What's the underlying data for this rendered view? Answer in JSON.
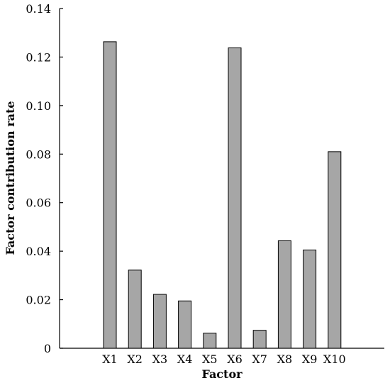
{
  "chart_data": {
    "type": "bar",
    "categories": [
      "X1",
      "X2",
      "X3",
      "X4",
      "X5",
      "X6",
      "X7",
      "X8",
      "X9",
      "X10"
    ],
    "values": [
      0.1263,
      0.0322,
      0.0222,
      0.0195,
      0.0062,
      0.1238,
      0.0074,
      0.0443,
      0.0405,
      0.081
    ],
    "xlabel": "Factor",
    "ylabel": "Factor contribution rate",
    "ylim": [
      0,
      0.14
    ],
    "yticks": [
      "0",
      "0.02",
      "0.04",
      "0.06",
      "0.08",
      "0.10",
      "0.12",
      "0.14"
    ],
    "bar_color": "#a6a6a6",
    "grid": false,
    "legend": "none"
  }
}
